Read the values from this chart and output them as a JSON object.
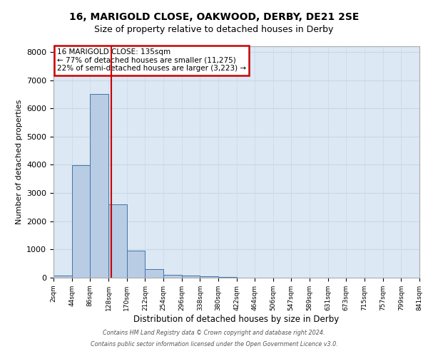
{
  "title1": "16, MARIGOLD CLOSE, OAKWOOD, DERBY, DE21 2SE",
  "title2": "Size of property relative to detached houses in Derby",
  "xlabel": "Distribution of detached houses by size in Derby",
  "ylabel": "Number of detached properties",
  "bin_edges": [
    2,
    44,
    86,
    128,
    170,
    212,
    254,
    296,
    338,
    380,
    422,
    464,
    506,
    547,
    589,
    631,
    673,
    715,
    757,
    799,
    841
  ],
  "bar_heights": [
    75,
    3980,
    6500,
    2600,
    950,
    310,
    110,
    80,
    60,
    20,
    0,
    0,
    0,
    0,
    0,
    0,
    0,
    0,
    0,
    0
  ],
  "bar_color": "#b8cce4",
  "bar_edge_color": "#4472a8",
  "red_line_x": 135,
  "annotation_line1": "16 MARIGOLD CLOSE: 135sqm",
  "annotation_line2": "← 77% of detached houses are smaller (11,275)",
  "annotation_line3": "22% of semi-detached houses are larger (3,223) →",
  "annotation_box_color": "#ffffff",
  "annotation_border_color": "#cc0000",
  "ylim": [
    0,
    8200
  ],
  "footnote1": "Contains HM Land Registry data © Crown copyright and database right 2024.",
  "footnote2": "Contains public sector information licensed under the Open Government Licence v3.0.",
  "tick_labels": [
    "2sqm",
    "44sqm",
    "86sqm",
    "128sqm",
    "170sqm",
    "212sqm",
    "254sqm",
    "296sqm",
    "338sqm",
    "380sqm",
    "422sqm",
    "464sqm",
    "506sqm",
    "547sqm",
    "589sqm",
    "631sqm",
    "673sqm",
    "715sqm",
    "757sqm",
    "799sqm",
    "841sqm"
  ],
  "yticks": [
    0,
    1000,
    2000,
    3000,
    4000,
    5000,
    6000,
    7000,
    8000
  ],
  "grid_color": "#c8d8e8",
  "bg_color": "#dce8f4",
  "title1_fontsize": 10,
  "title2_fontsize": 9
}
